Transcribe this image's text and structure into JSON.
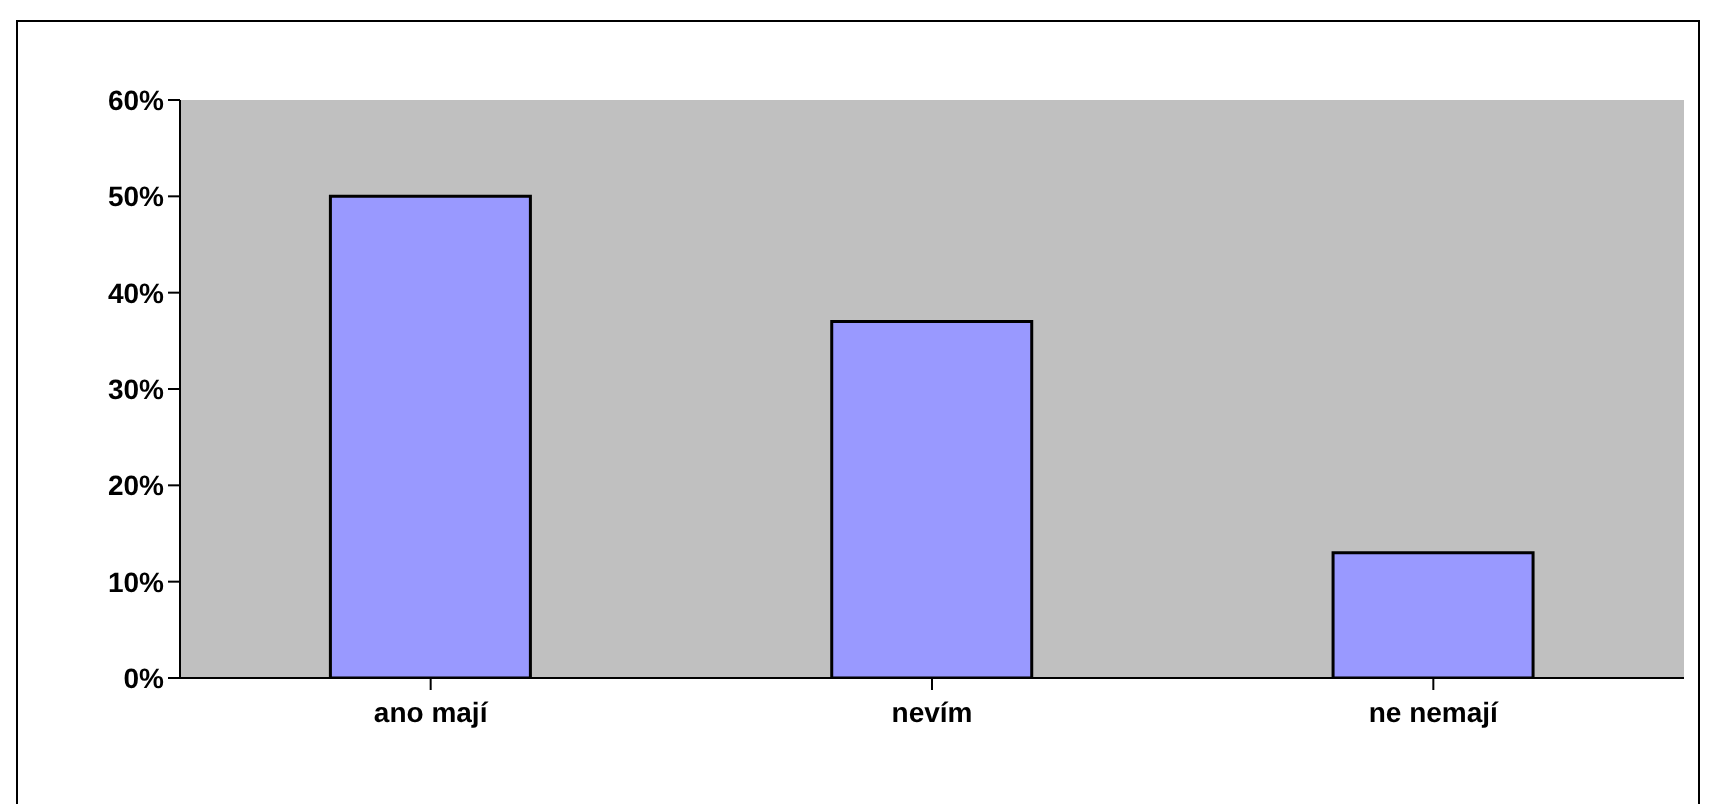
{
  "chart_data": {
    "type": "bar",
    "categories": [
      "ano mají",
      "nevím",
      "ne nemají"
    ],
    "values": [
      50,
      37,
      13
    ],
    "color": "#9999ff",
    "ylim": [
      0,
      60
    ],
    "yticks": [
      {
        "value": 0,
        "label": "0%"
      },
      {
        "value": 10,
        "label": "10%"
      },
      {
        "value": 20,
        "label": "20%"
      },
      {
        "value": 30,
        "label": "30%"
      },
      {
        "value": 40,
        "label": "40%"
      },
      {
        "value": 50,
        "label": "50%"
      },
      {
        "value": 60,
        "label": "60%"
      }
    ]
  }
}
